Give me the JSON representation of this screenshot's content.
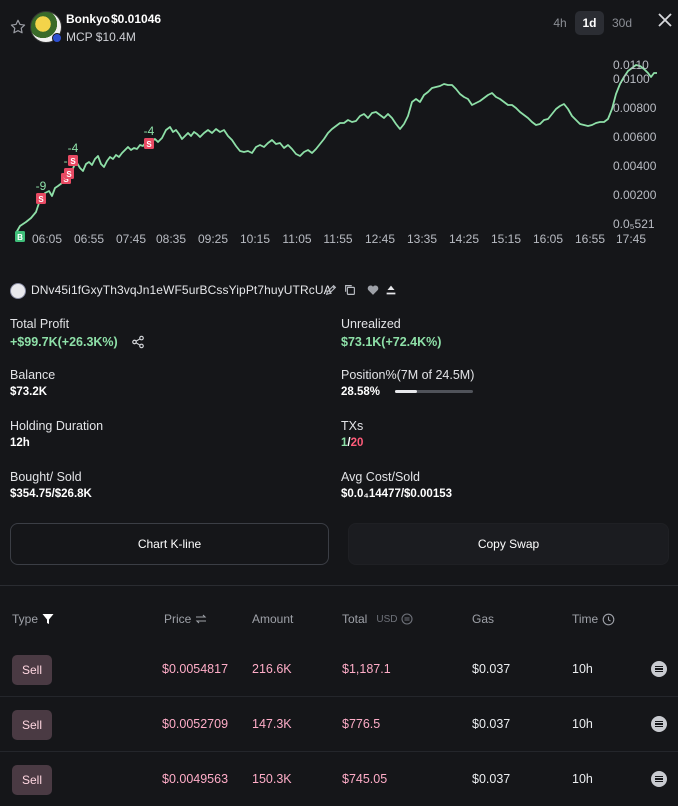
{
  "header": {
    "token_name": "Bonkyo",
    "token_price": "$0.01046",
    "mcp": "MCP $10.4M",
    "timeframes": [
      "4h",
      "1d",
      "30d"
    ],
    "active_timeframe": "1d"
  },
  "chart_data": {
    "type": "line",
    "y_ticks": [
      "0.0110",
      "0.0100",
      "0.00800",
      "0.00600",
      "0.00400",
      "0.00200",
      "0.0₅521"
    ],
    "x_ticks": [
      "06:05",
      "06:55",
      "07:45",
      "08:35",
      "09:25",
      "10:15",
      "11:05",
      "11:55",
      "12:45",
      "13:35",
      "14:25",
      "15:15",
      "16:05",
      "16:55",
      "17:45"
    ],
    "line_color": "#8ee0a8",
    "markers": [
      {
        "kind": "B",
        "index": 0
      },
      {
        "kind": "S",
        "index": 4,
        "label": "-9"
      },
      {
        "kind": "S",
        "index": 9
      },
      {
        "kind": "S",
        "index": 11,
        "label": "-2"
      },
      {
        "kind": "S",
        "index": 12,
        "label": "-4"
      },
      {
        "kind": "S",
        "index": 24,
        "label": "-4"
      }
    ],
    "buy_color": "#3fbf7a",
    "sell_color": "#e84a63"
  },
  "wallet": {
    "address": "DNv45i1fGxyTh3vqJn1eWF5urBCssYipPt7huyUTRcUA"
  },
  "stats": {
    "total_profit_label": "Total Profit",
    "total_profit_value": "+$99.7K(+26.3K%)",
    "unrealized_label": "Unrealized",
    "unrealized_value": "$73.1K(+72.4K%)",
    "balance_label": "Balance",
    "balance_value": "$73.2K",
    "position_label": "Position%(7M of 24.5M)",
    "position_value": "28.58%",
    "position_fraction": 0.2858,
    "holding_label": "Holding Duration",
    "holding_value": "12h",
    "txs_label": "TXs",
    "txs_buys": "1",
    "txs_sep": "/",
    "txs_sells": "20",
    "bought_sold_label": "Bought/ Sold",
    "bought_sold_value": "$354.75/$26.8K",
    "avg_cost_label": "Avg Cost/Sold",
    "avg_cost_value": "$0.0₄14477/$0.00153"
  },
  "buttons": {
    "kline": "Chart K-line",
    "copy_swap": "Copy Swap"
  },
  "table": {
    "headers": {
      "type": "Type",
      "price": "Price",
      "amount": "Amount",
      "total": "Total",
      "total_unit": "USD",
      "gas": "Gas",
      "time": "Time"
    },
    "rows": [
      {
        "type": "Sell",
        "price": "$0.0054817",
        "amount": "216.6K",
        "total": "$1,187.1",
        "gas": "$0.037",
        "time": "10h"
      },
      {
        "type": "Sell",
        "price": "$0.0052709",
        "amount": "147.3K",
        "total": "$776.5",
        "gas": "$0.037",
        "time": "10h"
      },
      {
        "type": "Sell",
        "price": "$0.0049563",
        "amount": "150.3K",
        "total": "$745.05",
        "gas": "$0.037",
        "time": "10h"
      }
    ]
  }
}
